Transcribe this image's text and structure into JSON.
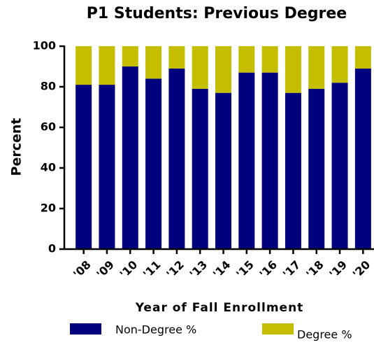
{
  "chart_data": {
    "type": "bar",
    "stacked": true,
    "title": "P1 Students: Previous Degree",
    "x_label": "Year of Fall Enrollment",
    "y_label": "Percent",
    "categories": [
      "'08",
      "'09",
      "'10",
      "'11",
      "'12",
      "'13",
      "'14",
      "'15",
      "'16",
      "'17",
      "'18",
      "'19",
      "'20"
    ],
    "series": [
      {
        "name": "Non-Degree %",
        "color": "#00007f",
        "values": [
          81,
          81,
          90,
          84,
          89,
          79,
          77,
          87,
          87,
          77,
          79,
          82,
          89
        ]
      },
      {
        "name": "Degree %",
        "color": "#c4bd00",
        "values": [
          19,
          19,
          10,
          16,
          11,
          21,
          23,
          13,
          13,
          23,
          21,
          18,
          11
        ]
      }
    ],
    "ylim": [
      0,
      100
    ],
    "yticks": [
      0,
      20,
      40,
      60,
      80,
      100
    ]
  }
}
